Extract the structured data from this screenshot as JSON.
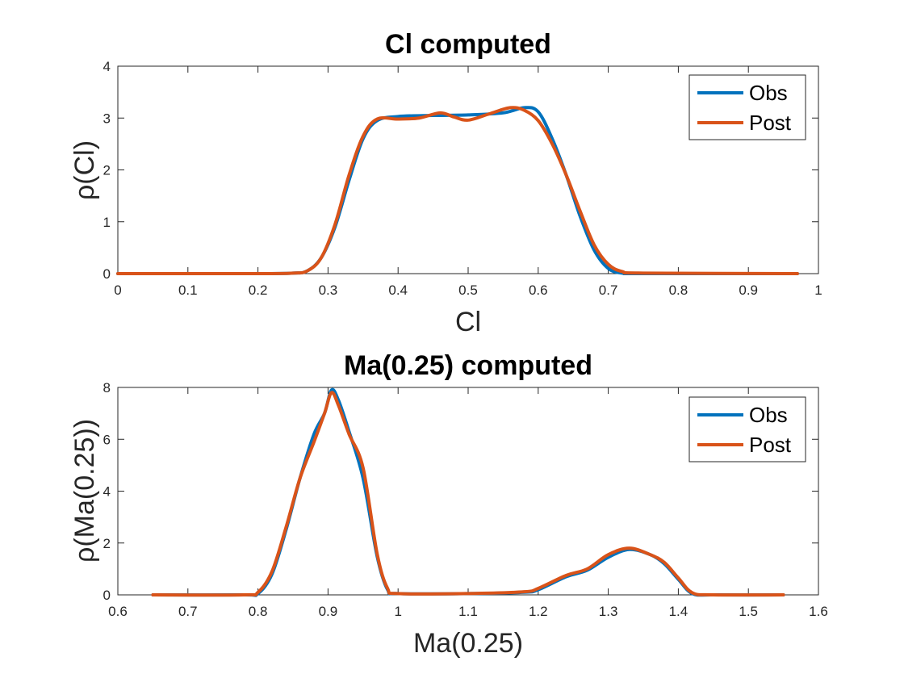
{
  "chart_data": [
    {
      "type": "line",
      "title": "Cl computed",
      "xlabel": "Cl",
      "ylabel": "ρ(Cl)",
      "xlim": [
        0,
        1
      ],
      "ylim": [
        0,
        4
      ],
      "xticks": [
        0,
        0.1,
        0.2,
        0.3,
        0.4,
        0.5,
        0.6,
        0.7,
        0.8,
        0.9,
        1
      ],
      "xtick_labels": [
        "0",
        "0.1",
        "0.2",
        "0.3",
        "0.4",
        "0.5",
        "0.6",
        "0.7",
        "0.8",
        "0.9",
        "1"
      ],
      "yticks": [
        0,
        1,
        2,
        3,
        4
      ],
      "ytick_labels": [
        "0",
        "1",
        "2",
        "3",
        "4"
      ],
      "grid": false,
      "legend_position": "top-right",
      "series": [
        {
          "name": "Obs",
          "color": "#0072BD",
          "points": [
            [
              0,
              0
            ],
            [
              0.2,
              0
            ],
            [
              0.25,
              0.01
            ],
            [
              0.27,
              0.05
            ],
            [
              0.29,
              0.3
            ],
            [
              0.31,
              0.9
            ],
            [
              0.33,
              1.8
            ],
            [
              0.35,
              2.6
            ],
            [
              0.37,
              2.95
            ],
            [
              0.4,
              3.03
            ],
            [
              0.45,
              3.05
            ],
            [
              0.5,
              3.06
            ],
            [
              0.55,
              3.1
            ],
            [
              0.58,
              3.2
            ],
            [
              0.6,
              3.12
            ],
            [
              0.62,
              2.6
            ],
            [
              0.64,
              1.9
            ],
            [
              0.66,
              1.1
            ],
            [
              0.68,
              0.45
            ],
            [
              0.7,
              0.1
            ],
            [
              0.72,
              0.01
            ],
            [
              0.75,
              0
            ],
            [
              0.97,
              0
            ]
          ]
        },
        {
          "name": "Post",
          "color": "#D95319",
          "points": [
            [
              0,
              0
            ],
            [
              0.2,
              0
            ],
            [
              0.25,
              0.01
            ],
            [
              0.27,
              0.05
            ],
            [
              0.29,
              0.3
            ],
            [
              0.31,
              0.95
            ],
            [
              0.33,
              1.9
            ],
            [
              0.35,
              2.65
            ],
            [
              0.37,
              2.98
            ],
            [
              0.4,
              2.98
            ],
            [
              0.43,
              3.0
            ],
            [
              0.46,
              3.1
            ],
            [
              0.48,
              3.02
            ],
            [
              0.5,
              2.96
            ],
            [
              0.53,
              3.08
            ],
            [
              0.56,
              3.2
            ],
            [
              0.58,
              3.15
            ],
            [
              0.6,
              2.95
            ],
            [
              0.62,
              2.5
            ],
            [
              0.64,
              1.9
            ],
            [
              0.66,
              1.2
            ],
            [
              0.68,
              0.55
            ],
            [
              0.7,
              0.18
            ],
            [
              0.72,
              0.04
            ],
            [
              0.75,
              0.01
            ],
            [
              0.97,
              0
            ]
          ]
        }
      ]
    },
    {
      "type": "line",
      "title": "Ma(0.25) computed",
      "xlabel": "Ma(0.25)",
      "ylabel": "ρ(Ma(0.25))",
      "xlim": [
        0.6,
        1.6
      ],
      "ylim": [
        0,
        8
      ],
      "xticks": [
        0.6,
        0.7,
        0.8,
        0.9,
        1.0,
        1.1,
        1.2,
        1.3,
        1.4,
        1.5,
        1.6
      ],
      "xtick_labels": [
        "0.6",
        "0.7",
        "0.8",
        "0.9",
        "1",
        "1.1",
        "1.2",
        "1.3",
        "1.4",
        "1.5",
        "1.6"
      ],
      "yticks": [
        0,
        2,
        4,
        6,
        8
      ],
      "ytick_labels": [
        "0",
        "2",
        "4",
        "6",
        "8"
      ],
      "grid": false,
      "legend_position": "top-right",
      "series": [
        {
          "name": "Obs",
          "color": "#0072BD",
          "points": [
            [
              0.65,
              0
            ],
            [
              0.78,
              0
            ],
            [
              0.8,
              0.05
            ],
            [
              0.82,
              0.8
            ],
            [
              0.84,
              2.5
            ],
            [
              0.86,
              4.5
            ],
            [
              0.88,
              6.2
            ],
            [
              0.895,
              7.0
            ],
            [
              0.905,
              7.9
            ],
            [
              0.915,
              7.5
            ],
            [
              0.93,
              6.3
            ],
            [
              0.95,
              4.5
            ],
            [
              0.97,
              1.5
            ],
            [
              0.985,
              0.2
            ],
            [
              1.0,
              0.05
            ],
            [
              1.1,
              0.05
            ],
            [
              1.18,
              0.1
            ],
            [
              1.2,
              0.2
            ],
            [
              1.24,
              0.7
            ],
            [
              1.27,
              0.95
            ],
            [
              1.3,
              1.45
            ],
            [
              1.33,
              1.75
            ],
            [
              1.36,
              1.55
            ],
            [
              1.38,
              1.2
            ],
            [
              1.4,
              0.6
            ],
            [
              1.42,
              0.05
            ],
            [
              1.45,
              0
            ],
            [
              1.55,
              0
            ]
          ]
        },
        {
          "name": "Post",
          "color": "#D95319",
          "points": [
            [
              0.65,
              0
            ],
            [
              0.78,
              0
            ],
            [
              0.8,
              0.1
            ],
            [
              0.82,
              0.9
            ],
            [
              0.84,
              2.6
            ],
            [
              0.86,
              4.5
            ],
            [
              0.88,
              5.9
            ],
            [
              0.895,
              7.0
            ],
            [
              0.905,
              7.8
            ],
            [
              0.915,
              7.3
            ],
            [
              0.93,
              6.2
            ],
            [
              0.95,
              4.9
            ],
            [
              0.97,
              1.6
            ],
            [
              0.985,
              0.25
            ],
            [
              1.0,
              0.05
            ],
            [
              1.1,
              0.05
            ],
            [
              1.18,
              0.12
            ],
            [
              1.2,
              0.25
            ],
            [
              1.24,
              0.75
            ],
            [
              1.27,
              1.0
            ],
            [
              1.3,
              1.55
            ],
            [
              1.33,
              1.8
            ],
            [
              1.36,
              1.55
            ],
            [
              1.38,
              1.25
            ],
            [
              1.4,
              0.65
            ],
            [
              1.42,
              0.08
            ],
            [
              1.45,
              0
            ],
            [
              1.55,
              0
            ]
          ]
        }
      ]
    }
  ]
}
